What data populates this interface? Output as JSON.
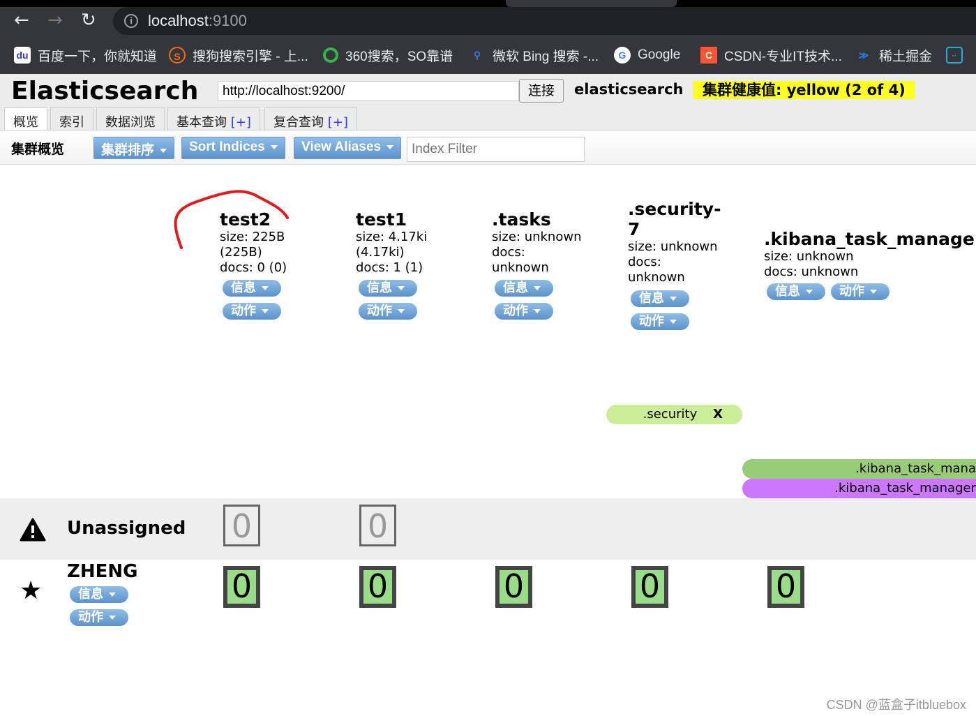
{
  "browser": {
    "url_host": "localhost",
    "url_port": ":9100",
    "back": "←",
    "forward": "→",
    "reload": "↻",
    "bookmarks": [
      {
        "label": "百度一下，你就知道",
        "icon": "baidu-icon",
        "color": "#2932e1"
      },
      {
        "label": "搜狗搜索引擎 - 上...",
        "icon": "sogou-icon",
        "color": "#f26b1d"
      },
      {
        "label": "360搜索，SO靠谱",
        "icon": "360-icon",
        "color": "#34b44a"
      },
      {
        "label": "微软 Bing 搜索 -...",
        "icon": "bing-search-icon",
        "color": "#3b78e7"
      },
      {
        "label": "Google",
        "icon": "google-icon",
        "color": "#ea4335"
      },
      {
        "label": "CSDN-专业IT技术...",
        "icon": "csdn-icon",
        "color": "#fc5531"
      },
      {
        "label": "稀土掘金",
        "icon": "juejin-icon",
        "color": "#1e80ff"
      },
      {
        "label": "",
        "icon": "bilibili-icon",
        "color": "#23ade5"
      }
    ]
  },
  "header": {
    "title": "Elasticsearch",
    "connect_url": "http://localhost:9200/",
    "connect_label": "连接",
    "cluster_name": "elasticsearch",
    "health": "集群健康值: yellow (2 of 4)",
    "health_color": "#ffff22"
  },
  "tabs": [
    {
      "label": "概览"
    },
    {
      "label": "索引"
    },
    {
      "label": "数据浏览"
    },
    {
      "label": "基本查询",
      "plus": "[+]"
    },
    {
      "label": "复合查询",
      "plus": "[+]"
    }
  ],
  "toolbar": {
    "title": "集群概览",
    "sort_cluster": "集群排序",
    "sort_indices": "Sort Indices",
    "view_aliases": "View Aliases",
    "filter_placeholder": "Index Filter"
  },
  "buttons": {
    "info": "信息",
    "action": "动作"
  },
  "indices": [
    {
      "name": "test2",
      "lines": [
        "size: 225B",
        "(225B)",
        "docs: 0 (0)"
      ]
    },
    {
      "name": "test1",
      "lines": [
        "size: 4.17ki",
        "(4.17ki)",
        "docs: 1 (1)"
      ]
    },
    {
      "name": ".tasks",
      "lines": [
        "size: unknown",
        "docs:",
        "unknown"
      ]
    },
    {
      "name": ".security-7",
      "lines": [
        "size: unknown",
        "docs:",
        "unknown"
      ]
    },
    {
      "name": ".kibana_task_manage",
      "lines": [
        "size: unknown",
        "docs: unknown"
      ]
    }
  ],
  "aliases": [
    {
      "label": ".security",
      "close": "X",
      "color": "#ccee99"
    },
    {
      "label": ".kibana_task_mana",
      "color": "#99cc77"
    },
    {
      "label": ".kibana_task_manager",
      "color": "#cc77ff"
    }
  ],
  "unassigned": {
    "label": "Unassigned",
    "shards": [
      "0",
      "0"
    ]
  },
  "node": {
    "name": "ZHENG",
    "shards": [
      "0",
      "0",
      "0",
      "0",
      "0"
    ]
  },
  "watermark": "CSDN @蓝盒子itbluebox"
}
